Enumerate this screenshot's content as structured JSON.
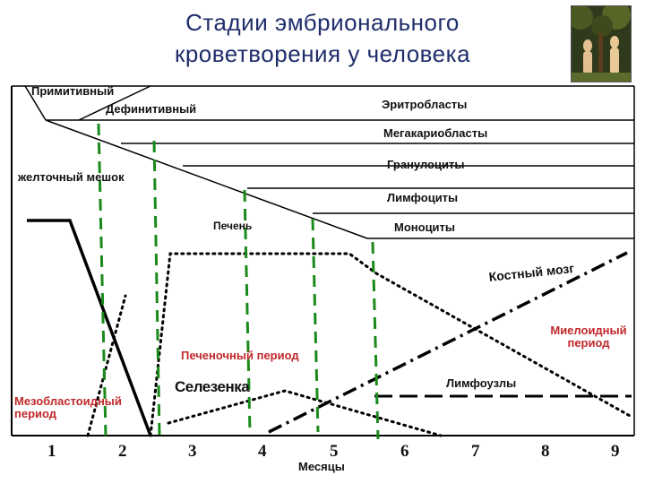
{
  "title": {
    "line1": "Стадии эмбрионального",
    "line2": "кроветворения  у человека"
  },
  "image": {
    "description": "painting-thumbnail"
  },
  "labels": {
    "primitive": "Примитивный",
    "definitive": "Дефинитивный",
    "erythroblasts": "Эритробласты",
    "megakaryoblasts": "Мегакариобласты",
    "granulocytes": "Гранулоциты",
    "lymphocytes": "Лимфоциты",
    "monocytes": "Моноциты",
    "yolk_sac": "желточный мешок",
    "liver": "Печень",
    "bone_marrow": "Костный мозг",
    "myeloid_period": "Миелоидный период",
    "hepatic_period": "Печеночный период",
    "spleen": "Селезенка",
    "lymph_nodes": "Лимфоузлы",
    "mesoblastic_period": "Мезобластоидный период",
    "x_axis": "Месяцы"
  },
  "months": [
    "1",
    "2",
    "3",
    "4",
    "5",
    "6",
    "7",
    "8",
    "9"
  ],
  "colors": {
    "title": "#1f2d6b",
    "red_labels": "#c0282a",
    "green_dividers": "#1a8a1a",
    "lines": "#000000"
  }
}
